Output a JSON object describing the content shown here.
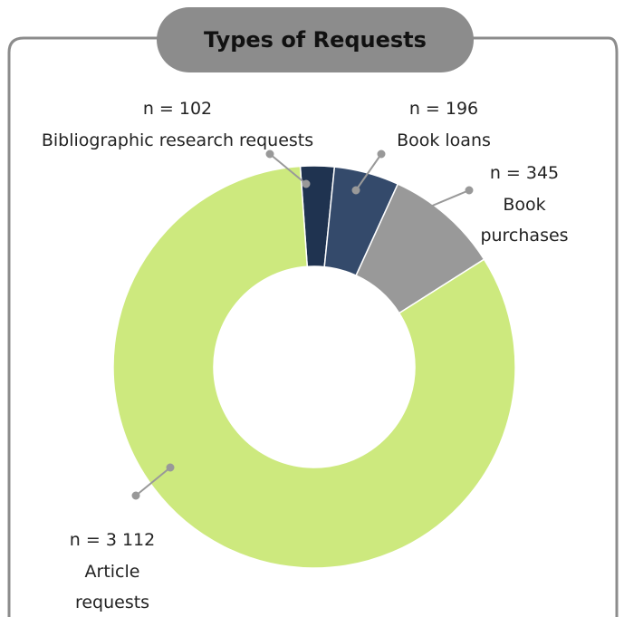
{
  "chart_data": {
    "type": "donut",
    "title": "Types of Requests",
    "categories": [
      "Bibliographic research requests",
      "Book loans",
      "Book purchases",
      "Article requests"
    ],
    "values": [
      102,
      196,
      345,
      3112
    ],
    "value_labels": [
      "n = 102",
      "n = 196",
      "n = 345",
      "n = 3 112"
    ],
    "colors": [
      "#1f3350",
      "#344a6b",
      "#999999",
      "#cde97e"
    ]
  }
}
